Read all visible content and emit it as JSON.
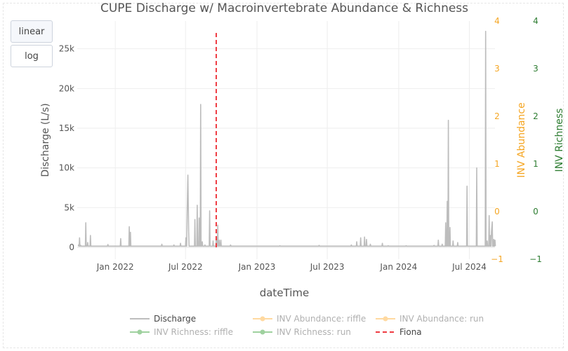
{
  "controls": {
    "linear_label": "linear",
    "log_label": "log",
    "active": "linear"
  },
  "colors": {
    "discharge": "#bdbdbd",
    "abundance": "#f5a623",
    "abundance_trace": "#ffd9a0",
    "richness": "#2e7d32",
    "richness_trace": "#9fd19f",
    "event": "#ef3b42",
    "grid": "#eeeeee",
    "text": "#555555"
  },
  "chart_data": {
    "type": "line",
    "title": "CUPE Discharge w/ Macroinvertebrate Abundance & Richness",
    "xlabel": "dateTime",
    "x_range": [
      "2021-09-25",
      "2024-09-05"
    ],
    "x_ticks": [
      {
        "date": "2022-01-01",
        "label": "Jan 2022"
      },
      {
        "date": "2022-07-01",
        "label": "Jul 2022"
      },
      {
        "date": "2023-01-01",
        "label": "Jan 2023"
      },
      {
        "date": "2023-07-01",
        "label": "Jul 2023"
      },
      {
        "date": "2024-01-01",
        "label": "Jan 2024"
      },
      {
        "date": "2024-07-01",
        "label": "Jul 2024"
      }
    ],
    "y_axes": {
      "discharge": {
        "label": "Discharge (L/s)",
        "range": [
          -1500,
          28500
        ],
        "ticks": [
          0,
          5000,
          10000,
          15000,
          20000,
          25000
        ],
        "tick_labels": [
          "0",
          "5k",
          "10k",
          "15k",
          "20k",
          "25k"
        ]
      },
      "abundance": {
        "label": "INV Abundance",
        "range": [
          -1,
          4
        ],
        "ticks": [
          -1,
          0,
          1,
          2,
          3,
          4
        ],
        "tick_labels": [
          "−1",
          "0",
          "1",
          "2",
          "3",
          "4"
        ]
      },
      "richness": {
        "label": "INV Richness",
        "range": [
          -1,
          4
        ],
        "ticks": [
          -1,
          0,
          1,
          2,
          3,
          4
        ],
        "tick_labels": [
          "−1",
          "0",
          "1",
          "2",
          "3",
          "4"
        ]
      }
    },
    "series": [
      {
        "name": "Discharge",
        "axis": "discharge",
        "baseline": 150,
        "points": [
          [
            "2021-09-28",
            300
          ],
          [
            "2021-10-01",
            1200
          ],
          [
            "2021-10-04",
            250
          ],
          [
            "2021-10-17",
            3100
          ],
          [
            "2021-10-22",
            600
          ],
          [
            "2021-10-29",
            1500
          ],
          [
            "2021-12-13",
            350
          ],
          [
            "2022-01-15",
            1100
          ],
          [
            "2022-02-06",
            2600
          ],
          [
            "2022-02-09",
            1900
          ],
          [
            "2022-05-01",
            400
          ],
          [
            "2022-06-01",
            300
          ],
          [
            "2022-06-18",
            500
          ],
          [
            "2022-07-02",
            1200
          ],
          [
            "2022-07-05",
            4300
          ],
          [
            "2022-07-07",
            9100
          ],
          [
            "2022-07-09",
            2000
          ],
          [
            "2022-07-25",
            3500
          ],
          [
            "2022-07-31",
            5300
          ],
          [
            "2022-08-05",
            3700
          ],
          [
            "2022-08-09",
            18000
          ],
          [
            "2022-08-13",
            700
          ],
          [
            "2022-08-20",
            300
          ],
          [
            "2022-09-01",
            4600
          ],
          [
            "2022-09-10",
            800
          ],
          [
            "2022-09-18",
            1200
          ],
          [
            "2022-09-22",
            2800
          ],
          [
            "2022-09-26",
            900
          ],
          [
            "2022-09-30",
            900
          ],
          [
            "2022-10-25",
            300
          ],
          [
            "2023-03-01",
            200
          ],
          [
            "2023-06-10",
            250
          ],
          [
            "2023-09-01",
            300
          ],
          [
            "2023-09-15",
            700
          ],
          [
            "2023-09-25",
            1200
          ],
          [
            "2023-10-05",
            1300
          ],
          [
            "2023-10-10",
            1000
          ],
          [
            "2023-10-20",
            400
          ],
          [
            "2023-11-20",
            500
          ],
          [
            "2023-12-05",
            200
          ],
          [
            "2024-01-20",
            200
          ],
          [
            "2024-04-01",
            250
          ],
          [
            "2024-04-12",
            900
          ],
          [
            "2024-04-22",
            400
          ],
          [
            "2024-05-01",
            3100
          ],
          [
            "2024-05-05",
            5800
          ],
          [
            "2024-05-08",
            16000
          ],
          [
            "2024-05-12",
            2500
          ],
          [
            "2024-05-20",
            800
          ],
          [
            "2024-06-01",
            600
          ],
          [
            "2024-06-25",
            7700
          ],
          [
            "2024-07-20",
            10000
          ],
          [
            "2024-08-12",
            27200
          ],
          [
            "2024-08-16",
            800
          ],
          [
            "2024-08-21",
            4000
          ],
          [
            "2024-08-24",
            1500
          ],
          [
            "2024-08-27",
            2000
          ],
          [
            "2024-08-29",
            3200
          ],
          [
            "2024-09-02",
            1000
          ],
          [
            "2024-09-05",
            900
          ]
        ]
      },
      {
        "name": "INV Abundance: riffle",
        "axis": "abundance",
        "points": []
      },
      {
        "name": "INV Abundance: run",
        "axis": "abundance",
        "points": []
      },
      {
        "name": "INV Richness: riffle",
        "axis": "richness",
        "points": []
      },
      {
        "name": "INV Richness: run",
        "axis": "richness",
        "points": []
      },
      {
        "name": "Fiona",
        "axis": "discharge",
        "date": "2022-09-18",
        "y_span": [
          0,
          27100
        ]
      }
    ],
    "legend": {
      "placement": "bottom",
      "entries": [
        "Discharge",
        "INV Abundance: riffle",
        "INV Abundance: run",
        "INV Richness: riffle",
        "INV Richness: run",
        "Fiona"
      ]
    },
    "grid": true
  }
}
